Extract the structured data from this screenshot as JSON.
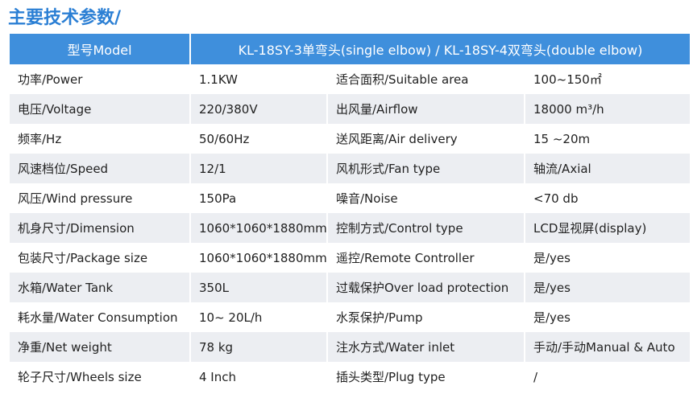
{
  "title": "主要技术参数/",
  "table": {
    "header": [
      "型号Model",
      "KL-18SY-3单弯头(single elbow) / KL-18SY-4双弯头(double elbow)"
    ],
    "rows": [
      [
        "功率/Power",
        "1.1KW",
        "适合面积/Suitable area",
        "100~150㎡"
      ],
      [
        "电压/Voltage",
        "220/380V",
        "出风量/Airflow",
        "18000 m³/h"
      ],
      [
        "频率/Hz",
        "50/60Hz",
        "送风距离/Air delivery",
        "15 ~20m"
      ],
      [
        "风速档位/Speed",
        "12/1",
        "风机形式/Fan type",
        "轴流/Axial"
      ],
      [
        "风压/Wind pressure",
        "150Pa",
        "噪音/Noise",
        "<70 db"
      ],
      [
        "机身尺寸/Dimension",
        "1060*1060*1880mm",
        "控制方式/Control type",
        "LCD显视屏(display)"
      ],
      [
        "包装尺寸/Package size",
        "1060*1060*1880mm",
        "遥控/Remote Controller",
        "是/yes"
      ],
      [
        "水箱/Water Tank",
        "350L",
        "过载保护Over load protection",
        "是/yes"
      ],
      [
        "耗水量/Water Consumption",
        "10~ 20L/h",
        "水泵保护/Pump",
        "是/yes"
      ],
      [
        "净重/Net weight",
        "78 kg",
        "注水方式/Water inlet",
        "手动/手动Manual & Auto"
      ],
      [
        "轮子尺寸/Wheels size",
        "4 Inch",
        "插头类型/Plug type",
        "/"
      ]
    ]
  }
}
